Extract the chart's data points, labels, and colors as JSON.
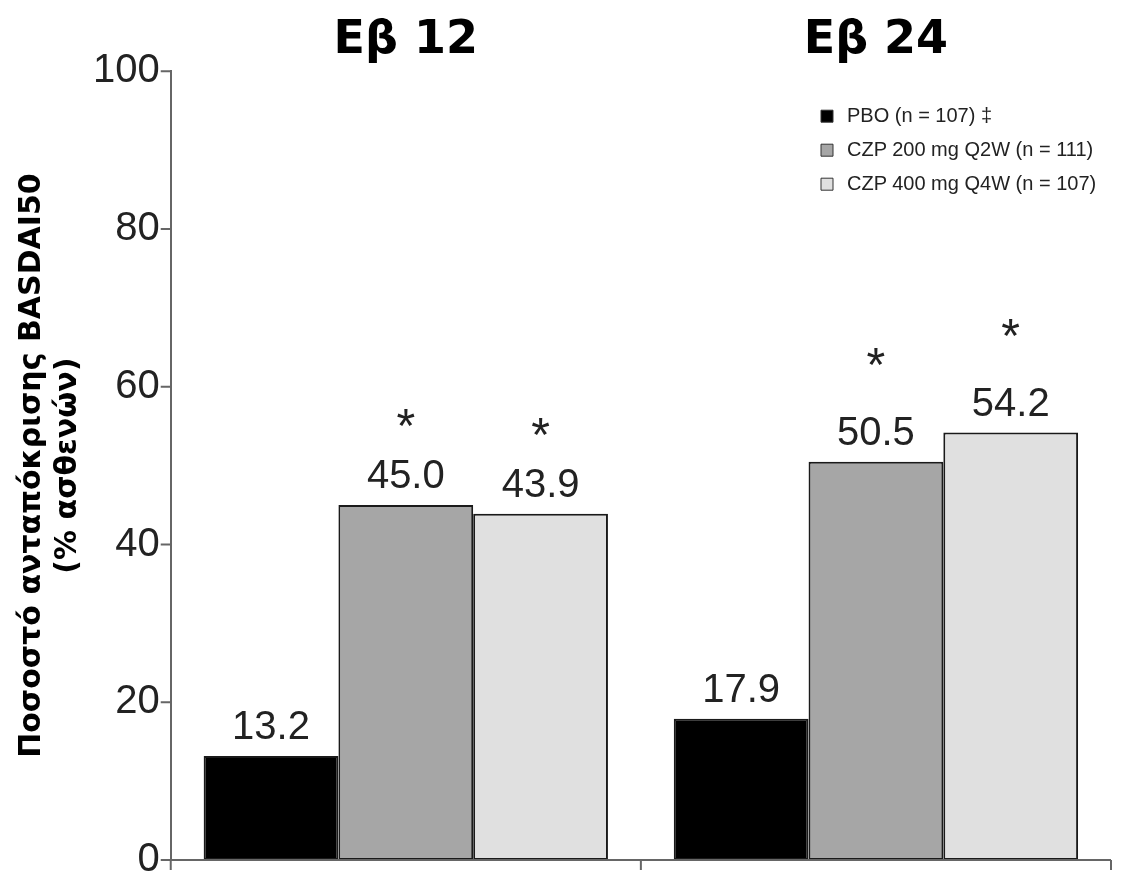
{
  "chart_data": {
    "type": "bar",
    "ylabel": "Ποσοστό ανταπόκρισης BASDAI50\n(% ασθενών)",
    "categories": [
      "Εβ 12",
      "Εβ 24"
    ],
    "series": [
      {
        "name": "PBO (n = 107) ‡",
        "color": "#000000",
        "values": [
          13.2,
          17.9
        ],
        "value_labels": [
          "13.2",
          "17.9"
        ]
      },
      {
        "name": "CZP 200 mg Q2W (n = 111)",
        "color": "#a6a6a6",
        "values": [
          45.0,
          50.5
        ],
        "value_labels": [
          "45.0",
          "50.5"
        ]
      },
      {
        "name": "CZP 400 mg Q4W (n = 107)",
        "color": "#e0e0e0",
        "values": [
          43.9,
          54.2
        ],
        "value_labels": [
          "43.9",
          "54.2"
        ]
      }
    ],
    "annotations": [
      "*",
      "*",
      "*",
      "*"
    ],
    "ylim": [
      0,
      100
    ],
    "yticks": [
      0,
      20,
      40,
      60,
      80,
      100
    ],
    "grid": false,
    "legend": "top right"
  }
}
